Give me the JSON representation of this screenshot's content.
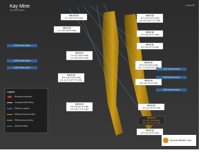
{
  "header": {
    "title": "Kay Mine",
    "subtitle": "Jan 2025 Section",
    "corner": "Looking NE"
  },
  "callouts": [
    {
      "lines": [
        "KM-23-61A",
        "6.2 m @ 2.41 % CuEq"
      ]
    },
    {
      "lines": [
        "KM-23-58",
        "5.1 m @ 1.86 % CuEq"
      ]
    },
    {
      "lines": [
        "KM-23-55",
        "12.4 m @ 3.12 % CuEq",
        "incl. 4.0 m @ 6.2 % CuEq"
      ]
    },
    {
      "lines": [
        "KM-23-60",
        "8.3 m @ 4.07 % CuEq"
      ]
    },
    {
      "lines": [
        "KM-23-52",
        "9.6 m @ 2.97 % CuEq"
      ]
    },
    {
      "lines": [
        "KM-23-51",
        "7.2 m @ 1.95 % CuEq",
        "3.4 m @ 2.88 % CuEq"
      ]
    },
    {
      "lines": [
        "KM-23-49",
        "10.5 m @ 2.54 % CuEq",
        "incl. 3.1 m @ 5.8 % CuEq"
      ]
    },
    {
      "lines": [
        "KM-23-46",
        "42.3 m @ 2.64 % CuEq",
        "incl. 12.2 m @ 4.9 % CuEq"
      ]
    },
    {
      "lines": [
        "KM-23-44",
        "6.8 m @ 3.31 % CuEq"
      ]
    },
    {
      "lines": [
        "KM-23-40",
        "3.4 m @ 2.97 % CuEq",
        "5.6 m @ 1.72 % CuEq"
      ]
    },
    {
      "lines": [
        "KM-23-38",
        "4.4 m @ 1.96 % CuEq"
      ]
    },
    {
      "lines": [
        "KM-23-36",
        "6.5 m @ 1.8 g/t AuEq",
        "4.6 m @ 2.41 % CuEq"
      ]
    },
    {
      "lines": [
        "KM-23-33",
        "5.6 m @ 1.31 % CuEq"
      ]
    }
  ],
  "depths": [
    "2,750 ft below surface",
    "3,000 ft below surface",
    "3,250 ft below surface",
    "2,900 ft below surface",
    "3,150 ft below surface",
    "3,500 ft below surface"
  ],
  "legend": {
    "title": "Legend",
    "items": [
      "Mineralized Intercepts",
      "Completed 2023 Drilling",
      "Drilling in progress",
      "Drilling intercepts pending",
      "Drilling assays pending",
      "Historical drilling"
    ]
  },
  "logo": "Arizona Metals Corp."
}
